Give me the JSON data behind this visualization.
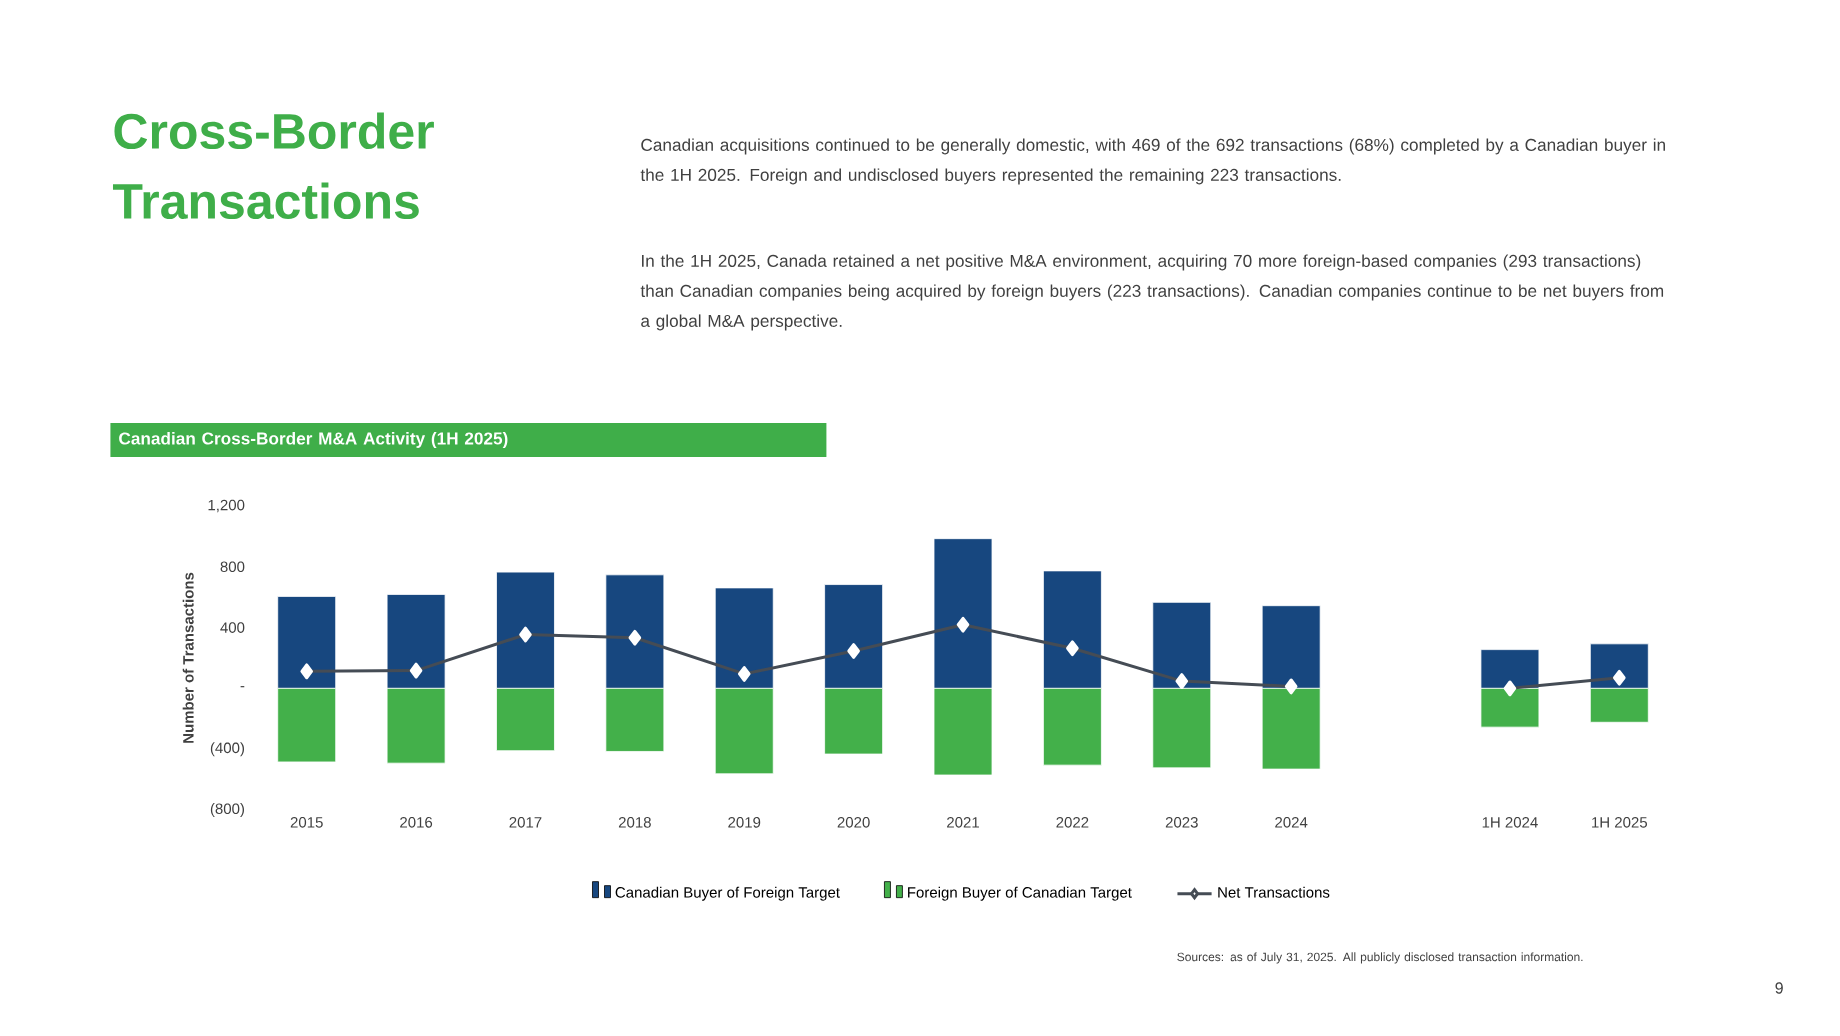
{
  "chart_data": {
    "type": "bar",
    "title": "Cross-Border Transactions",
    "subtitle": "Canadian Cross-Border M&A Activity (1H 2025)",
    "ylabel": "Number of Transactions",
    "categories": [
      "2015",
      "2016",
      "2017",
      "2018",
      "2019",
      "2020",
      "2021",
      "2022",
      "2023",
      "2024",
      null,
      "1H 2024",
      "1H 2025"
    ],
    "series": [
      {
        "name": "Canadian Buyer of Foreign Target",
        "color": "#17477f",
        "values": [
          605,
          618,
          765,
          747,
          661,
          683,
          985,
          773,
          566,
          544,
          null,
          255,
          293
        ]
      },
      {
        "name": "Foreign Buyer of Canadian Target",
        "color": "#43b04a",
        "values": [
          -484,
          -492,
          -410,
          -415,
          -562,
          -432,
          -570,
          -505,
          -523,
          -531,
          null,
          -255,
          -223
        ]
      },
      {
        "name": "Net Transactions",
        "type": "line",
        "color": "#454c55",
        "marker": "diamond",
        "values": [
          112,
          117,
          354,
          333,
          95,
          246,
          419,
          264,
          48,
          13,
          null,
          0,
          70
        ]
      }
    ],
    "stacked": true,
    "legend": "bottom",
    "ylim": [
      -800,
      1200
    ],
    "yticks": [
      {
        "value": -800,
        "label": "(800)"
      },
      {
        "value": -400,
        "label": "(400)"
      },
      {
        "value": 0,
        "label": "-"
      },
      400,
      800,
      {
        "value": 1200,
        "label": "1,200"
      }
    ],
    "annotations": [
      "Canadian acquisitions continued to be generally domestic, with 469 of the 692 transactions (68%) completed by a Canadian buyer in the 1H 2025. Foreign and undisclosed buyers represented the remaining 223 transactions.",
      "In the 1H 2025, Canada retained a net positive M&A environment, acquiring 70 more foreign-based companies (293 transactions) than Canadian companies being acquired by foreign buyers (223 transactions). Canadian companies continue to be net buyers from a global M&A perspective.",
      "Sources: as of July 31, 2025. All publicly disclosed transaction information.",
      "9"
    ]
  }
}
